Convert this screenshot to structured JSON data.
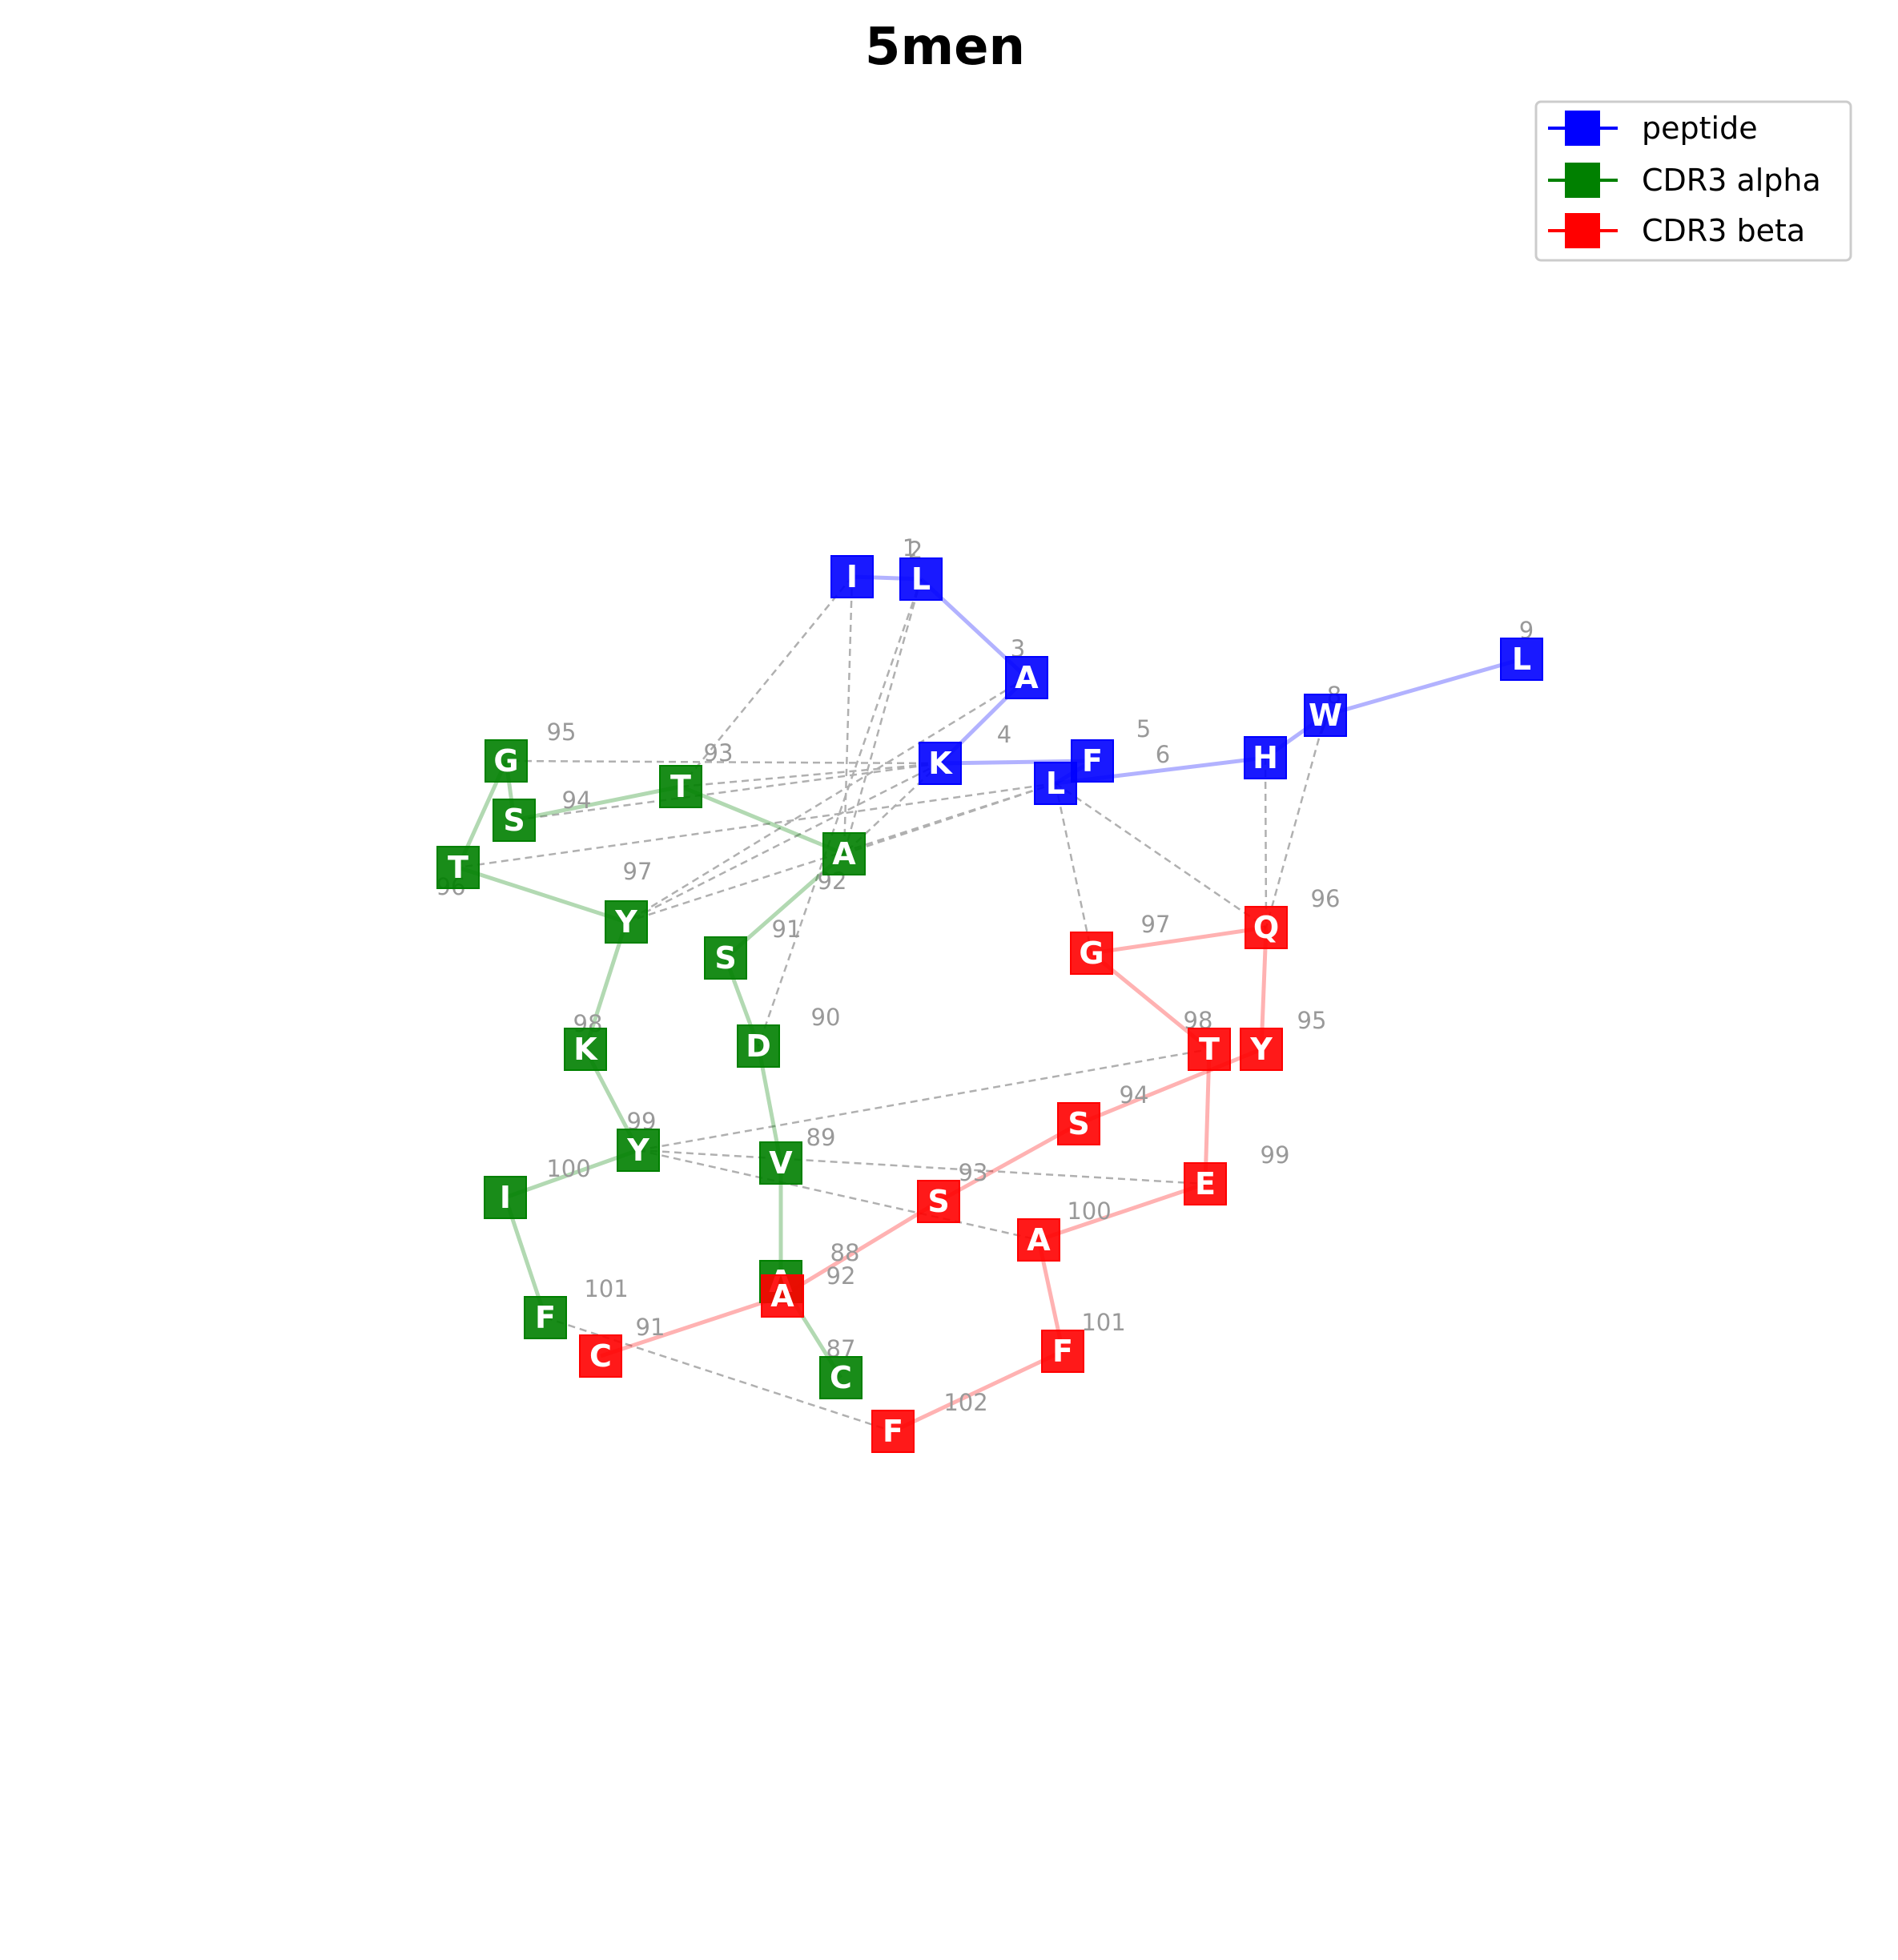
{
  "title": "5men",
  "legend": [
    {
      "label": "peptide",
      "color": "#0000ff"
    },
    {
      "label": "CDR3 alpha",
      "color": "#008000"
    },
    {
      "label": "CDR3 beta",
      "color": "#ff0000"
    }
  ],
  "chains": [
    {
      "id": "peptide",
      "color": "#0000ff",
      "residues": [
        {
          "aa": "I",
          "num": "1"
        },
        {
          "aa": "L",
          "num": "2"
        },
        {
          "aa": "A",
          "num": "3"
        },
        {
          "aa": "K",
          "num": "4"
        },
        {
          "aa": "F",
          "num": "5"
        },
        {
          "aa": "L",
          "num": "6"
        },
        {
          "aa": "H",
          "num": "7"
        },
        {
          "aa": "W",
          "num": "8"
        },
        {
          "aa": "L",
          "num": "9"
        }
      ]
    },
    {
      "id": "alpha",
      "color": "#008000",
      "residues": [
        {
          "aa": "C",
          "num": "87"
        },
        {
          "aa": "A",
          "num": "88"
        },
        {
          "aa": "V",
          "num": "89"
        },
        {
          "aa": "D",
          "num": "90"
        },
        {
          "aa": "S",
          "num": "91"
        },
        {
          "aa": "A",
          "num": "92"
        },
        {
          "aa": "T",
          "num": "93"
        },
        {
          "aa": "S",
          "num": "94"
        },
        {
          "aa": "G",
          "num": "95"
        },
        {
          "aa": "T",
          "num": "96"
        },
        {
          "aa": "Y",
          "num": "97"
        },
        {
          "aa": "K",
          "num": "98"
        },
        {
          "aa": "Y",
          "num": "99"
        },
        {
          "aa": "I",
          "num": "100"
        },
        {
          "aa": "F",
          "num": "101"
        }
      ]
    },
    {
      "id": "beta",
      "color": "#ff0000",
      "residues": [
        {
          "aa": "C",
          "num": "91"
        },
        {
          "aa": "A",
          "num": "92"
        },
        {
          "aa": "S",
          "num": "93"
        },
        {
          "aa": "S",
          "num": "94"
        },
        {
          "aa": "Y",
          "num": "95"
        },
        {
          "aa": "Q",
          "num": "96"
        },
        {
          "aa": "G",
          "num": "97"
        },
        {
          "aa": "T",
          "num": "98"
        },
        {
          "aa": "E",
          "num": "99"
        },
        {
          "aa": "A",
          "num": "100"
        },
        {
          "aa": "F",
          "num": "101"
        },
        {
          "aa": "F",
          "num": "102"
        }
      ]
    }
  ],
  "contacts": [
    [
      "peptide",
      0,
      "alpha",
      6
    ],
    [
      "peptide",
      0,
      "alpha",
      5
    ],
    [
      "peptide",
      1,
      "alpha",
      5
    ],
    [
      "peptide",
      1,
      "alpha",
      3
    ],
    [
      "peptide",
      2,
      "alpha",
      10
    ],
    [
      "peptide",
      3,
      "alpha",
      8
    ],
    [
      "peptide",
      3,
      "alpha",
      6
    ],
    [
      "peptide",
      3,
      "alpha",
      7
    ],
    [
      "peptide",
      3,
      "alpha",
      10
    ],
    [
      "peptide",
      3,
      "alpha",
      5
    ],
    [
      "peptide",
      5,
      "alpha",
      9
    ],
    [
      "peptide",
      5,
      "alpha",
      10
    ],
    [
      "peptide",
      5,
      "alpha",
      5
    ],
    [
      "peptide",
      5,
      "beta",
      6
    ],
    [
      "peptide",
      5,
      "beta",
      5
    ],
    [
      "peptide",
      6,
      "beta",
      5
    ],
    [
      "peptide",
      7,
      "beta",
      5
    ],
    [
      "alpha",
      12,
      "beta",
      7
    ],
    [
      "alpha",
      12,
      "beta",
      8
    ],
    [
      "alpha",
      12,
      "beta",
      9
    ],
    [
      "alpha",
      14,
      "beta",
      11
    ]
  ]
}
